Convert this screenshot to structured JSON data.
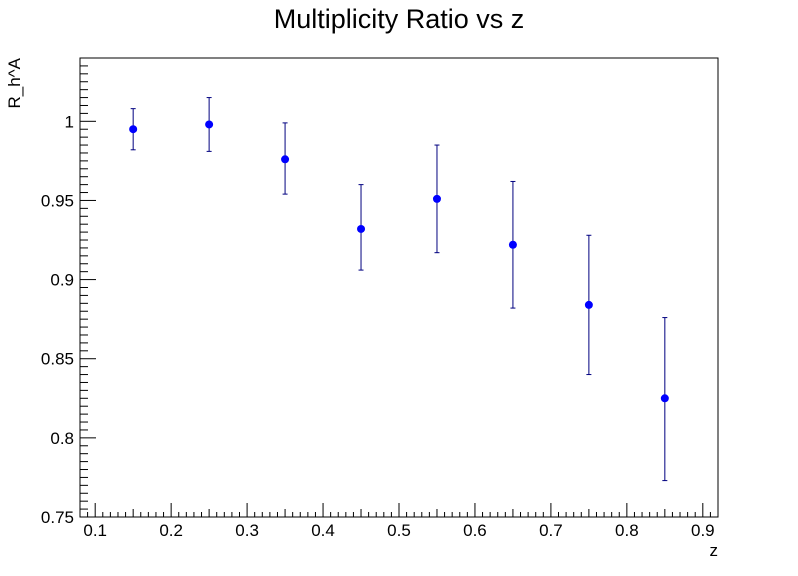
{
  "chart_data": {
    "type": "scatter",
    "title": "Multiplicity Ratio vs z",
    "xlabel": "z",
    "ylabel": "R_h^A",
    "xlim": [
      0.08,
      0.92
    ],
    "ylim": [
      0.75,
      1.04
    ],
    "grid": false,
    "x_ticks": [
      "0.1",
      "0.2",
      "0.3",
      "0.4",
      "0.5",
      "0.6",
      "0.7",
      "0.8",
      "0.9"
    ],
    "y_ticks": [
      "0.75",
      "0.8",
      "0.85",
      "0.9",
      "0.95",
      "1"
    ],
    "series": [
      {
        "color": "#0000ff",
        "error_bar_color": "#000080",
        "x": [
          0.15,
          0.25,
          0.35,
          0.45,
          0.55,
          0.65,
          0.75,
          0.85
        ],
        "y": [
          0.995,
          0.998,
          0.976,
          0.932,
          0.951,
          0.922,
          0.884,
          0.825
        ],
        "y_err_low": [
          0.982,
          0.981,
          0.954,
          0.906,
          0.917,
          0.882,
          0.84,
          0.773
        ],
        "y_err_high": [
          1.008,
          1.015,
          0.999,
          0.96,
          0.985,
          0.962,
          0.928,
          0.876
        ]
      }
    ]
  }
}
